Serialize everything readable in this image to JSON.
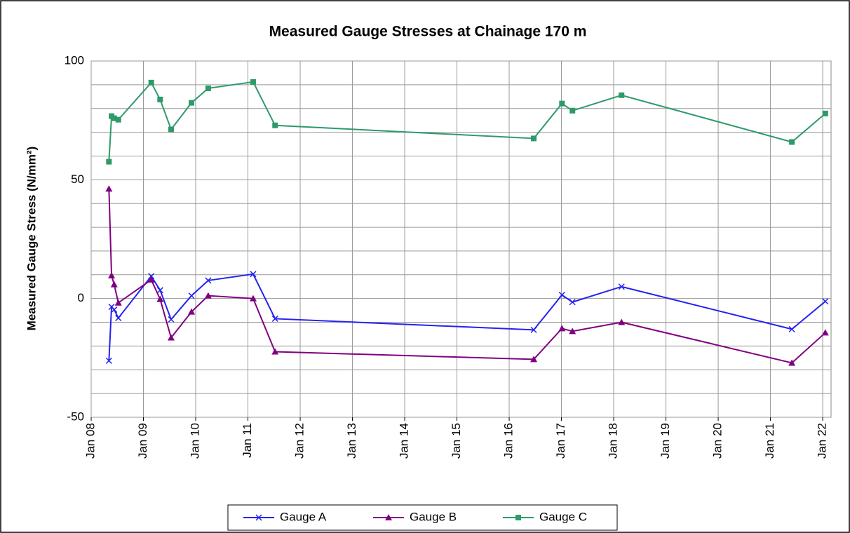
{
  "chart_data": {
    "type": "line",
    "title": "Measured Gauge Stresses at Chainage 170 m",
    "y_label": "Measured Gauge Stress (N/mm²)",
    "x": [
      2008.34,
      2008.39,
      2008.44,
      2008.52,
      2009.15,
      2009.32,
      2009.53,
      2009.92,
      2010.24,
      2011.1,
      2011.52,
      2016.47,
      2017.01,
      2017.21,
      2018.15,
      2021.41,
      2022.05
    ],
    "series": [
      {
        "name": "Gauge A",
        "color": "#2323f0",
        "marker": "x",
        "values": [
          -26.2,
          -3.5,
          -4.7,
          -8.2,
          9.4,
          3.5,
          -8.8,
          1.2,
          7.6,
          10.3,
          -8.5,
          -13.2,
          1.5,
          -1.5,
          5.0,
          -12.9,
          -1.2
        ]
      },
      {
        "name": "Gauge B",
        "color": "#800080",
        "marker": "triangle",
        "values": [
          46.2,
          9.7,
          5.9,
          -1.8,
          7.9,
          -0.3,
          -16.5,
          -5.6,
          1.2,
          0,
          -22.4,
          -25.6,
          -12.6,
          -13.8,
          -10,
          -27.1,
          -14.4
        ]
      },
      {
        "name": "Gauge C",
        "color": "#2e9a6a",
        "marker": "square",
        "values": [
          57.6,
          76.8,
          75.9,
          75.3,
          90.9,
          83.8,
          71.2,
          82.4,
          88.5,
          91.2,
          72.9,
          67.4,
          82.1,
          79.1,
          85.6,
          65.9,
          77.9
        ]
      }
    ],
    "xlim": [
      2008,
      2022.16
    ],
    "xticks": [
      {
        "value": 2008,
        "label": "Jan 08"
      },
      {
        "value": 2009,
        "label": "Jan 09"
      },
      {
        "value": 2010,
        "label": "Jan 10"
      },
      {
        "value": 2011,
        "label": "Jan 11"
      },
      {
        "value": 2012,
        "label": "Jan 12"
      },
      {
        "value": 2013,
        "label": "Jan 13"
      },
      {
        "value": 2014,
        "label": "Jan 14"
      },
      {
        "value": 2015,
        "label": "Jan 15"
      },
      {
        "value": 2016,
        "label": "Jan 16"
      },
      {
        "value": 2017,
        "label": "Jan 17"
      },
      {
        "value": 2018,
        "label": "Jan 18"
      },
      {
        "value": 2019,
        "label": "Jan 19"
      },
      {
        "value": 2020,
        "label": "Jan 20"
      },
      {
        "value": 2021,
        "label": "Jan 21"
      },
      {
        "value": 2022,
        "label": "Jan 22"
      }
    ],
    "ylim": [
      -50,
      100
    ],
    "yticks": [
      -50,
      0,
      50,
      100
    ],
    "minor_yticks": [
      -40,
      -30,
      -20,
      -10,
      10,
      20,
      30,
      40,
      60,
      70,
      80,
      90
    ],
    "grid": true,
    "legend": "bottom"
  }
}
